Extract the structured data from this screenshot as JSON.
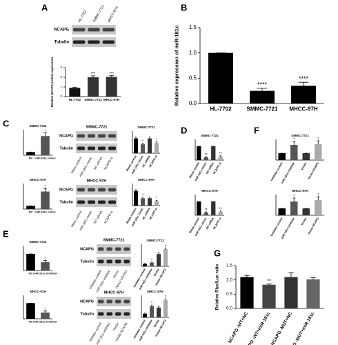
{
  "panel_letters": [
    "A",
    "B",
    "C",
    "D",
    "E",
    "F",
    "G"
  ],
  "blots": [
    {
      "lanes": [
        "HL-7702",
        "SMMC-7721",
        "MHCC-97H"
      ],
      "rows": [
        "NCAPG",
        "Tubulin"
      ]
    },
    {
      "title": "SMMC-7721",
      "lanes": [
        "Mimic control",
        "miR-181c mimic",
        "NC-siRNA",
        "NCAPG-si"
      ],
      "rows": [
        "NCAPG",
        "Tubulin"
      ]
    },
    {
      "title": "MHCC-97H",
      "lanes": [
        "Mimic control",
        "miR-181c mimic",
        "NC-siRNA",
        "NCAPG-si"
      ],
      "rows": [
        "NCAPG",
        "Tubulin"
      ]
    },
    {
      "title": "SMMC-7721",
      "lanes": [
        "Inhibitor control",
        "miR-181c inhibitor",
        "Vector",
        "Vector-NCAPG"
      ],
      "rows": [
        "NCAPG",
        "Tubulin"
      ]
    },
    {
      "title": "MHCC-97H",
      "lanes": [
        "Inhibitor control",
        "miR-181c inhibitor",
        "Vector",
        "Vector-NCAPG"
      ],
      "rows": [
        "NCAPG",
        "Tubulin"
      ]
    }
  ],
  "chart_data": [
    {
      "type": "bar",
      "ylabel": "Relative NCAPG protein expression",
      "categories": [
        "HL-7702",
        "SMMC-7721",
        "MHCC-97H"
      ],
      "values": [
        0.9,
        2.0,
        2.05
      ],
      "errors": [
        0.05,
        0.15,
        0.12
      ],
      "annotations": [
        null,
        "***",
        "***"
      ],
      "colors": [
        "#111111",
        "#333333",
        "#333333"
      ],
      "ylim": [
        0,
        3
      ],
      "yticks": [
        0,
        1,
        2,
        3
      ]
    },
    {
      "type": "bar",
      "ylabel": "Relative expression of miR-181c",
      "categories": [
        "HL-7702",
        "SMMC-7721",
        "MHCC-97H"
      ],
      "values": [
        1.0,
        0.25,
        0.35
      ],
      "errors": [
        0,
        0.05,
        0.07
      ],
      "annotations": [
        null,
        "****",
        "****"
      ],
      "colors": [
        "#000000",
        "#000000",
        "#000000"
      ],
      "ylim": [
        0,
        1.5
      ],
      "yticks": [
        {
          "value": 0,
          "label": "0.0"
        },
        {
          "value": 0.5,
          "label": "0.5"
        },
        {
          "value": 1,
          "label": "1.0"
        },
        {
          "value": 1.5,
          "label": "1.5"
        }
      ]
    },
    {
      "type": "bar",
      "title": "SMMC-7721",
      "categories": [
        "NC",
        "miR-181c mimic"
      ],
      "values": [
        1,
        6
      ],
      "errors": [
        0,
        1
      ],
      "annotations": [
        null,
        "*"
      ],
      "colors": [
        "#000000",
        "#555555"
      ],
      "ylim": [
        0,
        8
      ]
    },
    {
      "type": "bar",
      "title": "MHCC-97H",
      "categories": [
        "NC",
        "miR-181c mimic"
      ],
      "values": [
        1,
        5.5
      ],
      "errors": [
        0,
        1
      ],
      "annotations": [
        null,
        "*"
      ],
      "colors": [
        "#000000",
        "#555555"
      ],
      "ylim": [
        0,
        8
      ]
    },
    {
      "type": "bar",
      "title": "SMMC-7721",
      "categories": [
        "Blank control",
        "miR-181c mimic",
        "NC-siRNA",
        "NCAPG-si"
      ],
      "values": [
        1.0,
        0.6,
        1.0,
        0.7
      ],
      "errors": [
        0.08,
        0.08,
        0.1,
        0.08
      ],
      "annotations": [
        null,
        "*",
        null,
        "*"
      ],
      "colors": [
        "#000000",
        "#555555",
        "#333333",
        "#aaaaaa"
      ],
      "ylim": [
        0,
        1.5
      ]
    },
    {
      "type": "bar",
      "title": "MHCC-97H",
      "categories": [
        "Blank control",
        "miR-181c mimic",
        "NC-siRNA",
        "NCAPG-si"
      ],
      "values": [
        1.0,
        0.5,
        0.5,
        0.3
      ],
      "errors": [
        0.08,
        0.08,
        0.08,
        0.06
      ],
      "annotations": [
        null,
        "*",
        null,
        "*"
      ],
      "colors": [
        "#000000",
        "#555555",
        "#333333",
        "#aaaaaa"
      ],
      "ylim": [
        0,
        1.5
      ]
    },
    {
      "type": "bar",
      "title": "SMMC-7721",
      "categories": [
        "Blank control",
        "miR-181c mimic",
        "NC-siRNA",
        "NCAPG-si"
      ],
      "values": [
        1.0,
        0.2,
        1.0,
        0.25
      ],
      "errors": [
        0,
        0.05,
        0,
        0.06
      ],
      "annotations": [
        null,
        "**",
        null,
        "**"
      ],
      "colors": [
        "#000000",
        "#555555",
        "#333333",
        "#aaaaaa"
      ],
      "ylim": [
        0,
        1.5
      ]
    },
    {
      "type": "bar",
      "title": "MHCC-97H",
      "categories": [
        "Blank control",
        "miR-181c mimic",
        "NC-siRNA",
        "NCAPG-si"
      ],
      "values": [
        1.0,
        0.2,
        1.0,
        0.25
      ],
      "errors": [
        0,
        0.05,
        0,
        0.06
      ],
      "annotations": [
        null,
        "**",
        null,
        "**"
      ],
      "colors": [
        "#000000",
        "#555555",
        "#333333",
        "#aaaaaa"
      ],
      "ylim": [
        0,
        1.5
      ]
    },
    {
      "type": "bar",
      "title": "SMMC-7721",
      "categories": [
        "Inhibitor control",
        "miR-181c inhibitor",
        "Vector",
        "Vector-NCAPG"
      ],
      "values": [
        1.0,
        2.2,
        1.0,
        2.3
      ],
      "errors": [
        0,
        0.5,
        0,
        0.5
      ],
      "annotations": [
        null,
        "*",
        null,
        "*"
      ],
      "colors": [
        "#000000",
        "#555555",
        "#333333",
        "#aaaaaa"
      ],
      "ylim": [
        0,
        3
      ]
    },
    {
      "type": "bar",
      "title": "MHCC-97H",
      "categories": [
        "Inhibitor control",
        "miR-181c inhibitor",
        "Vector",
        "Vector-NCAPG"
      ],
      "values": [
        1.0,
        2.0,
        1.0,
        2.2
      ],
      "errors": [
        0,
        0.5,
        0,
        0.5
      ],
      "annotations": [
        null,
        "*",
        null,
        "*"
      ],
      "colors": [
        "#000000",
        "#555555",
        "#333333",
        "#aaaaaa"
      ],
      "ylim": [
        0,
        3
      ]
    },
    {
      "type": "bar",
      "title": "SMMC-7721",
      "categories": [
        "NC",
        "miR-181c inhibitor"
      ],
      "values": [
        1.0,
        0.5
      ],
      "errors": [
        0,
        0.1
      ],
      "annotations": [
        null,
        "*"
      ],
      "colors": [
        "#000000",
        "#555555"
      ],
      "ylim": [
        0,
        1.5
      ]
    },
    {
      "type": "bar",
      "title": "MHCC-97H",
      "categories": [
        "NC",
        "miR-181c inhibitor"
      ],
      "values": [
        1.0,
        0.4
      ],
      "errors": [
        0,
        0.1
      ],
      "annotations": [
        null,
        "*"
      ],
      "colors": [
        "#000000",
        "#555555"
      ],
      "ylim": [
        0,
        1.5
      ]
    },
    {
      "type": "bar",
      "title": "SMMC-7721",
      "categories": [
        "Inhibitor control",
        "miR-181c inhibitor",
        "Vector",
        "Vector-NCAPG"
      ],
      "values": [
        0.2,
        0.3,
        1.0,
        1.4
      ],
      "errors": [
        0.03,
        0.05,
        0.1,
        0.1
      ],
      "annotations": [
        null,
        "*",
        null,
        "*"
      ],
      "colors": [
        "#000000",
        "#555555",
        "#333333",
        "#aaaaaa"
      ],
      "ylim": [
        0,
        1.8
      ]
    },
    {
      "type": "bar",
      "title": "MHCC-97H",
      "categories": [
        "Inhibitor control",
        "miR-181c inhibitor",
        "Vector",
        "Vector-NCAPG"
      ],
      "values": [
        0.3,
        0.9,
        0.8,
        1.4
      ],
      "errors": [
        0.05,
        0.1,
        0.1,
        0.12
      ],
      "annotations": [
        null,
        "*",
        null,
        "*"
      ],
      "colors": [
        "#000000",
        "#555555",
        "#333333",
        "#aaaaaa"
      ],
      "ylim": [
        0,
        1.8
      ]
    },
    {
      "type": "bar",
      "ylabel": "Relative Rluc/Luc ratio",
      "categories": [
        "NCAPG -WT+NC",
        "NCAPG -WT+miR-181c",
        "NCAPG -MUT+NC",
        "NCAPG -MUT+miR-181c"
      ],
      "values": [
        1.1,
        0.83,
        1.1,
        1.02
      ],
      "errors": [
        0.06,
        0.03,
        0.15,
        0.06
      ],
      "annotations": [
        null,
        "**",
        null,
        null
      ],
      "colors": [
        "#000000",
        "#444444",
        "#333333",
        "#666666"
      ],
      "ylim": [
        0,
        1.5
      ],
      "yticks": [
        {
          "value": 0,
          "label": "0.0"
        },
        {
          "value": 0.5,
          "label": "0.5"
        },
        {
          "value": 1,
          "label": "1.0"
        },
        {
          "value": 1.5,
          "label": "1.5"
        }
      ]
    }
  ]
}
